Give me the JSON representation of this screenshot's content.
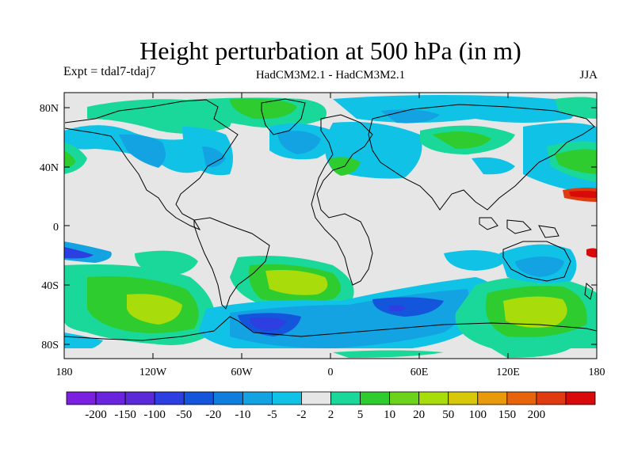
{
  "title": "Height perturbation at 500 hPa (in m)",
  "subtitle_left": "Expt = tdal7-tdaj7",
  "subtitle_center": "HadCM3M2.1 - HadCM3M2.1",
  "subtitle_right": "JJA",
  "lat_ticks": [
    "80N",
    "40N",
    "0",
    "40S",
    "80S"
  ],
  "lon_ticks": [
    "180",
    "120W",
    "60W",
    "0",
    "60E",
    "120E",
    "180"
  ],
  "colorbar": {
    "labels": [
      "-200",
      "-150",
      "-100",
      "-50",
      "-20",
      "-10",
      "-5",
      "-2",
      "2",
      "5",
      "10",
      "20",
      "50",
      "100",
      "150",
      "200"
    ],
    "colors": [
      "#7b1fe0",
      "#6a24de",
      "#5a2ad8",
      "#2e3fe2",
      "#1456db",
      "#0f7edc",
      "#13a2e2",
      "#10c2e6",
      "#e6e6e6",
      "#1ad89a",
      "#2fcc2f",
      "#6ad31a",
      "#a8dc0a",
      "#d8c80a",
      "#e89a0a",
      "#e8640a",
      "#e03a10",
      "#d80a0a"
    ]
  },
  "colors": {
    "background": "#e6e6e6",
    "coast": "#000000"
  }
}
